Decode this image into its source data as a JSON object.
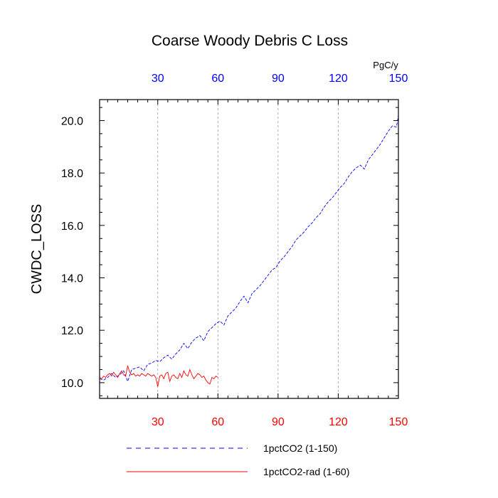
{
  "chart_data": {
    "type": "line",
    "title": "Coarse Woody Debris C Loss",
    "ylabel": "CWDC_LOSS",
    "units": "PgC/y",
    "xlim": [
      1,
      150
    ],
    "ylim": [
      9.4,
      20.8
    ],
    "x_ticks": [
      30,
      60,
      90,
      120,
      150
    ],
    "y_ticks": [
      10.0,
      12.0,
      14.0,
      16.0,
      18.0,
      20.0
    ],
    "y_tick_labels": [
      "10.0",
      "12.0",
      "14.0",
      "16.0",
      "18.0",
      "20.0"
    ],
    "grid": "vertical dashed at major x ticks",
    "top_tick_color": "#0000ff",
    "bottom_tick_color": "#ff0000",
    "legend": {
      "placement": "bottom"
    },
    "series": [
      {
        "name": "1pctCO2 (1-150)",
        "color": "#0000ff",
        "dash": "dashed",
        "x": [
          1,
          3,
          5,
          7,
          9,
          11,
          13,
          15,
          17,
          19,
          21,
          23,
          25,
          27,
          29,
          31,
          33,
          35,
          37,
          39,
          41,
          43,
          45,
          47,
          49,
          51,
          53,
          55,
          57,
          59,
          61,
          63,
          65,
          67,
          69,
          71,
          73,
          75,
          77,
          79,
          81,
          83,
          85,
          87,
          89,
          91,
          93,
          95,
          97,
          99,
          101,
          103,
          105,
          107,
          109,
          111,
          113,
          115,
          117,
          119,
          121,
          123,
          125,
          127,
          129,
          131,
          133,
          135,
          137,
          139,
          141,
          143,
          145,
          147,
          149,
          150
        ],
        "values": [
          10.15,
          10.1,
          10.2,
          10.35,
          10.2,
          10.3,
          10.45,
          10.05,
          10.5,
          10.55,
          10.6,
          10.45,
          10.7,
          10.75,
          10.85,
          10.8,
          10.95,
          11.05,
          10.9,
          11.1,
          11.25,
          11.5,
          11.3,
          11.55,
          11.7,
          11.8,
          11.6,
          11.95,
          12.1,
          12.25,
          12.35,
          12.2,
          12.55,
          12.7,
          12.85,
          13.1,
          13.3,
          13.05,
          13.4,
          13.55,
          13.7,
          13.9,
          14.1,
          14.3,
          14.4,
          14.65,
          14.8,
          15.0,
          15.2,
          15.45,
          15.6,
          15.75,
          15.95,
          16.1,
          16.3,
          16.45,
          16.7,
          16.9,
          17.05,
          17.25,
          17.45,
          17.6,
          17.85,
          18.05,
          18.2,
          18.3,
          18.15,
          18.5,
          18.7,
          18.9,
          19.1,
          19.35,
          19.6,
          19.8,
          19.75,
          20.2
        ]
      },
      {
        "name": "1pctCO2-rad (1-60)",
        "color": "#ff0000",
        "dash": "solid",
        "x": [
          1,
          2,
          3,
          4,
          5,
          6,
          7,
          8,
          9,
          10,
          11,
          12,
          13,
          14,
          15,
          16,
          17,
          18,
          19,
          20,
          21,
          22,
          23,
          24,
          25,
          26,
          27,
          28,
          29,
          30,
          31,
          32,
          33,
          34,
          35,
          36,
          37,
          38,
          39,
          40,
          41,
          42,
          43,
          44,
          45,
          46,
          47,
          48,
          49,
          50,
          51,
          52,
          53,
          54,
          55,
          56,
          57,
          58,
          59,
          60
        ],
        "values": [
          10.2,
          10.15,
          10.25,
          10.2,
          10.3,
          10.35,
          10.25,
          10.4,
          10.3,
          10.2,
          10.35,
          10.45,
          10.3,
          10.25,
          10.65,
          10.4,
          10.3,
          10.35,
          10.25,
          10.3,
          10.25,
          10.35,
          10.3,
          10.25,
          10.35,
          10.3,
          10.25,
          10.3,
          10.2,
          9.85,
          10.25,
          10.3,
          10.15,
          10.35,
          10.4,
          10.05,
          10.25,
          10.3,
          10.2,
          10.15,
          10.35,
          10.2,
          10.45,
          10.3,
          10.25,
          10.5,
          10.3,
          10.15,
          10.25,
          10.35,
          10.3,
          10.2,
          10.25,
          10.1,
          10.0,
          9.95,
          10.2,
          10.15,
          10.25,
          10.2
        ]
      }
    ]
  }
}
